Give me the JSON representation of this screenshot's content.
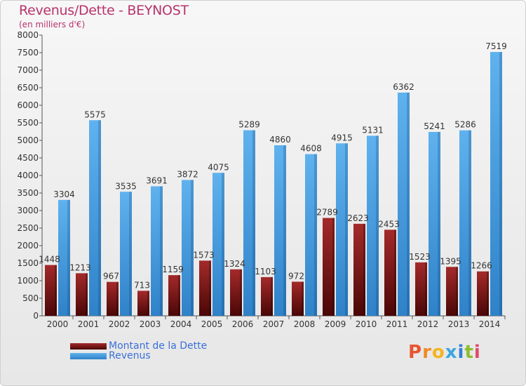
{
  "header": {
    "title": "Revenus/Dette - BEYNOST",
    "subtitle": "(en milliers d'€)"
  },
  "logo": {
    "text": "Proxiti"
  },
  "colors": {
    "dette": "#7a0f0f",
    "revenus": "#4fa3e3",
    "title": "#b8336a",
    "legend_text": "#3a6fd8"
  },
  "chart_data": {
    "type": "bar",
    "title": "Revenus/Dette - BEYNOST",
    "ylabel": "(en milliers d'€)",
    "xlabel": "",
    "ylim": [
      0,
      8000
    ],
    "yticks": [
      0,
      500,
      1000,
      1500,
      2000,
      2500,
      3000,
      3500,
      4000,
      4500,
      5000,
      5500,
      6000,
      6500,
      7000,
      7500,
      8000
    ],
    "grid": false,
    "legend": "bottom-left",
    "categories": [
      "2000",
      "2001",
      "2002",
      "2003",
      "2004",
      "2005",
      "2006",
      "2007",
      "2008",
      "2009",
      "2010",
      "2011",
      "2012",
      "2013",
      "2014"
    ],
    "series": [
      {
        "name": "Montant de la Dette",
        "color": "#7a0f0f",
        "values": [
          1448,
          1213,
          967,
          713,
          1159,
          1573,
          1324,
          1103,
          972,
          2789,
          2623,
          2453,
          1523,
          1395,
          1266
        ],
        "labels": [
          "1448",
          "1213",
          "967",
          "713",
          "1159",
          "1573",
          "1324",
          "1103",
          "972",
          "2789",
          "2623",
          "2453",
          "1523",
          "1395",
          "1266"
        ]
      },
      {
        "name": "Revenus",
        "color": "#4fa3e3",
        "values": [
          3304,
          5575,
          3535,
          3691,
          3872,
          4075,
          5289,
          4860,
          4608,
          4915,
          5131,
          6362,
          5241,
          5286,
          7519
        ],
        "labels": [
          "3304",
          "5575",
          "3535",
          "3691",
          "3872",
          "4075",
          "5289",
          "4860",
          "4608",
          "4915",
          "5131",
          "6362",
          "5241",
          "5286",
          "7519"
        ]
      }
    ]
  }
}
